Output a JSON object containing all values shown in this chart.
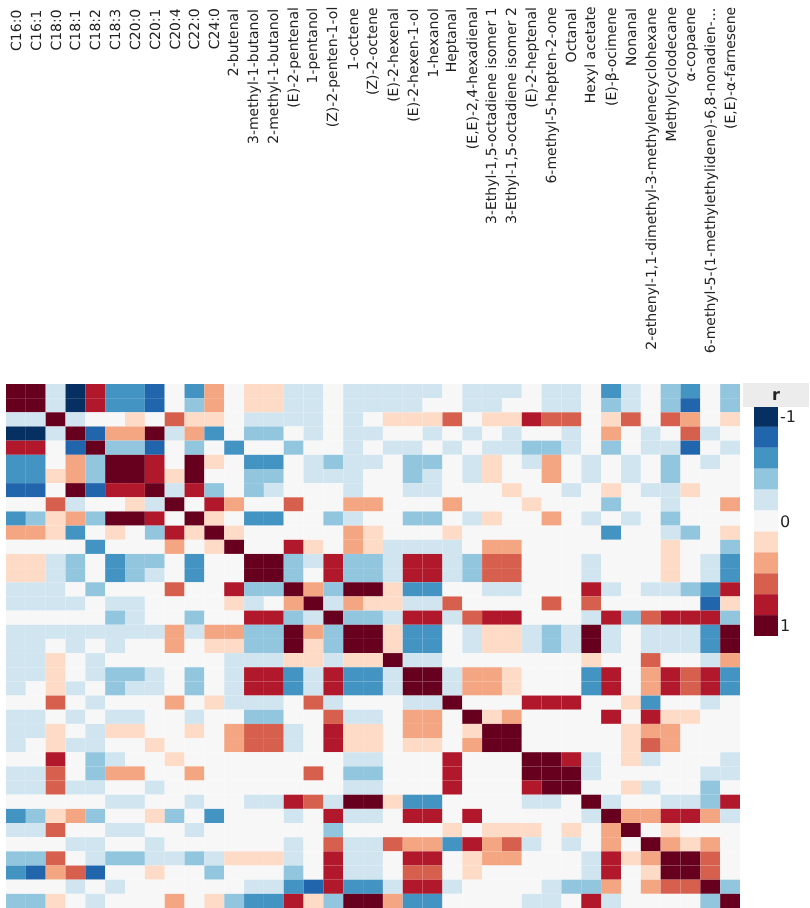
{
  "chart_data": {
    "type": "heatmap",
    "categories": [
      "C16:0",
      "C16:1",
      "C18:0",
      "C18:1",
      "C18:2",
      "C18:3",
      "C20:0",
      "C20:1",
      "C20:4",
      "C22:0",
      "C24:0",
      "2-butenal",
      "3-methyl-1-butanol",
      "2-methyl-1-butanol",
      "(E)-2-pentenal",
      "1-pentanol",
      "(Z)-2-penten-1-ol",
      "1-octene",
      "(Z)-2-octene",
      "(E)-2-hexenal",
      "(E)-2-hexen-1-ol",
      "1-hexanol",
      "Heptanal",
      "(E,E)-2,4-hexadienal",
      "3-Ethyl-1,5-octadiene isomer 1",
      "3-Ethyl-1,5-octadiene isomer 2",
      "(E)-2-heptenal",
      "6-methyl-5-hepten-2-one",
      "Octanal",
      "Hexyl acetate",
      "(E)-β-ocimene",
      "Nonanal",
      "2-ethenyl-1,1-dimethyl-3-methylenecyclohexane",
      "Methylcyclodecane",
      "α-copaene",
      "6-methyl-5-(1-methylethylidene)-6,8-nonadien-...",
      "(E,E)-α-farnesene"
    ],
    "y_categories": [
      null,
      null,
      null,
      null,
      null,
      null,
      null,
      null,
      null,
      null,
      null,
      null,
      null,
      null,
      null,
      null,
      null,
      null,
      null,
      null,
      null,
      null,
      null,
      null,
      null,
      null,
      null,
      null,
      null,
      null,
      null,
      null,
      null,
      null,
      null,
      null,
      null
    ],
    "cells": [
      [
        1,
        1,
        -0.2,
        -1,
        0.8,
        -0.6,
        -0.6,
        -0.8,
        0,
        -0.6,
        0.4,
        0,
        0.2,
        0.2,
        -0.2,
        -0.2,
        0,
        -0.2,
        -0.2,
        -0.2,
        -0.2,
        -0.2,
        0,
        -0.2,
        -0.2,
        -0.2,
        0,
        -0.2,
        -0.2,
        0,
        -0.6,
        -0.2,
        0,
        -0.4,
        -0.6,
        0,
        -0.4
      ],
      [
        1,
        1,
        -0.2,
        -1,
        0.8,
        -0.6,
        -0.6,
        -0.8,
        0,
        -0.4,
        0.4,
        0,
        0.2,
        0.2,
        -0.2,
        -0.2,
        0,
        -0.2,
        -0.2,
        -0.2,
        -0.2,
        0,
        0,
        -0.2,
        -0.2,
        0,
        0,
        -0.2,
        -0.2,
        0,
        -0.4,
        -0.2,
        0,
        -0.4,
        -0.8,
        0,
        -0.4
      ],
      [
        -0.2,
        -0.2,
        1,
        -0.2,
        0,
        0,
        0.2,
        0,
        0.6,
        0.2,
        0.2,
        0,
        -0.2,
        -0.2,
        -0.2,
        -0.2,
        0,
        -0.2,
        0,
        0.2,
        0.2,
        0.2,
        0.6,
        0,
        0.2,
        0.2,
        0.8,
        0.6,
        0.6,
        0,
        0.2,
        0.6,
        0,
        0.6,
        0.4,
        0,
        0.2
      ],
      [
        -1,
        -1,
        -0.2,
        1,
        -0.8,
        0.4,
        0.4,
        1,
        -0.2,
        0.4,
        -0.6,
        0,
        -0.4,
        -0.4,
        0,
        -0.2,
        0,
        -0.2,
        -0.2,
        0,
        0,
        -0.2,
        0,
        -0.2,
        0,
        -0.2,
        0,
        0,
        -0.2,
        0,
        0.4,
        0,
        -0.2,
        0,
        0.6,
        -0.2,
        0
      ],
      [
        0.8,
        0.8,
        0,
        -0.8,
        1,
        -0.4,
        -0.4,
        -0.8,
        0,
        -0.4,
        0,
        -0.6,
        0,
        0,
        -0.4,
        0,
        0,
        -0.2,
        0,
        -0.2,
        -0.2,
        0,
        -0.2,
        0,
        -0.2,
        -0.2,
        -0.4,
        -0.4,
        -0.2,
        0,
        -0.4,
        0,
        -0.2,
        -0.2,
        -0.8,
        0,
        -0.2
      ],
      [
        -0.6,
        -0.6,
        0,
        0.4,
        -0.4,
        1,
        1,
        0.8,
        0,
        1,
        0.2,
        0,
        -0.6,
        -0.6,
        0,
        -0.2,
        -0.4,
        -0.2,
        -0.2,
        0,
        -0.4,
        -0.4,
        0,
        -0.2,
        0.2,
        0,
        -0.2,
        0.4,
        0,
        -0.2,
        0,
        -0.2,
        0,
        -0.4,
        0,
        -0.2,
        0
      ],
      [
        -0.6,
        -0.6,
        0.2,
        0.4,
        -0.4,
        1,
        1,
        0.8,
        0.2,
        1,
        0,
        0,
        -0.4,
        -0.4,
        0,
        -0.2,
        -0.2,
        -0.2,
        0,
        0,
        -0.4,
        -0.2,
        0,
        -0.2,
        0.2,
        0,
        0,
        0.4,
        0,
        -0.2,
        0,
        -0.2,
        0,
        -0.4,
        0,
        0,
        0
      ],
      [
        -0.8,
        -0.8,
        0,
        1,
        -0.8,
        0.8,
        0.8,
        1,
        -0.2,
        0.8,
        -0.4,
        0,
        -0.4,
        -0.2,
        0,
        0,
        0,
        -0.2,
        0,
        0,
        -0.2,
        -0.2,
        0,
        0,
        0,
        0.2,
        0,
        0,
        -0.2,
        0,
        0.2,
        0,
        -0.2,
        -0.2,
        0.2,
        0,
        0
      ],
      [
        0,
        0,
        0.6,
        -0.2,
        0,
        0,
        0.2,
        -0.2,
        1,
        0,
        0.8,
        0.4,
        0,
        0,
        0.6,
        0,
        0,
        0.4,
        0.4,
        0,
        0,
        0,
        0.4,
        0,
        0,
        0,
        0.2,
        0,
        0,
        0,
        -0.4,
        0,
        0,
        -0.2,
        0,
        0,
        0.4
      ],
      [
        -0.6,
        -0.4,
        0.2,
        0.4,
        -0.4,
        1,
        1,
        0.8,
        0,
        1,
        0.2,
        0,
        -0.6,
        -0.6,
        0,
        0,
        -0.4,
        -0.2,
        0,
        0,
        -0.4,
        -0.4,
        0,
        -0.2,
        0.2,
        0,
        0,
        0.4,
        0,
        -0.2,
        0,
        -0.2,
        0,
        -0.4,
        0,
        0,
        0
      ],
      [
        0.4,
        0.4,
        0.2,
        -0.6,
        0,
        0.2,
        0,
        -0.4,
        0.8,
        0.2,
        1,
        0.2,
        0,
        0,
        0,
        0,
        0,
        0.4,
        0.2,
        0,
        0,
        0,
        0.2,
        0,
        0,
        0,
        0,
        0,
        0,
        0,
        -0.6,
        0,
        0,
        -0.2,
        -0.4,
        0,
        0.2
      ],
      [
        0,
        0,
        0,
        0,
        -0.6,
        0,
        0,
        0,
        0.4,
        0,
        0.2,
        1,
        0,
        0,
        0.8,
        0.2,
        0,
        0.4,
        0.2,
        -0.2,
        -0.2,
        -0.2,
        -0.2,
        0,
        0.4,
        0.4,
        0,
        0,
        0,
        0,
        0,
        0,
        0,
        0.2,
        0,
        0,
        -0.4
      ],
      [
        0.2,
        0.2,
        -0.2,
        -0.4,
        0,
        -0.6,
        -0.4,
        -0.4,
        0,
        -0.6,
        0,
        0,
        1,
        1,
        -0.4,
        -0.2,
        0.8,
        -0.4,
        -0.4,
        -0.2,
        0.8,
        0.8,
        -0.2,
        -0.4,
        0.6,
        0.6,
        0,
        0,
        0,
        -0.2,
        0,
        0,
        0,
        0.2,
        0,
        -0.2,
        -0.6
      ],
      [
        0.2,
        0.2,
        -0.2,
        -0.4,
        0,
        -0.6,
        -0.4,
        -0.2,
        0,
        -0.6,
        0,
        0,
        1,
        1,
        -0.4,
        0,
        0.8,
        -0.4,
        -0.4,
        -0.2,
        0.8,
        0.8,
        -0.2,
        -0.4,
        0.6,
        0.6,
        0,
        0,
        0,
        -0.2,
        0,
        0,
        0,
        0.2,
        0,
        -0.2,
        -0.6
      ],
      [
        -0.2,
        -0.2,
        -0.2,
        0,
        -0.4,
        0,
        0,
        0,
        0.6,
        0,
        0,
        0.8,
        -0.4,
        -0.4,
        1,
        0.4,
        -0.4,
        1,
        1,
        0.2,
        -0.6,
        -0.6,
        0,
        0,
        -0.2,
        -0.2,
        0,
        0,
        0,
        0.8,
        -0.2,
        0,
        -0.2,
        -0.2,
        -0.4,
        -0.6,
        0.8
      ],
      [
        -0.2,
        -0.2,
        -0.2,
        -0.2,
        0,
        -0.2,
        -0.2,
        0,
        0,
        0,
        0,
        0.2,
        -0.2,
        0,
        0.4,
        1,
        -0.2,
        0.4,
        0.2,
        0.2,
        -0.2,
        -0.2,
        0.6,
        0,
        0,
        0,
        0,
        0.6,
        0,
        0.6,
        0,
        0,
        0,
        0,
        0,
        -0.8,
        0.2
      ],
      [
        0,
        0,
        0,
        0,
        0,
        -0.4,
        -0.2,
        0,
        0,
        -0.4,
        0,
        0,
        0.8,
        0.8,
        -0.4,
        -0.2,
        1,
        -0.4,
        -0.4,
        -0.2,
        0.8,
        0.8,
        -0.2,
        0.6,
        0.8,
        0.8,
        0,
        0,
        0,
        -0.2,
        0.8,
        -0.4,
        0.6,
        0.8,
        0.8,
        0.8,
        -0.4
      ],
      [
        -0.2,
        -0.2,
        -0.2,
        -0.2,
        -0.2,
        -0.2,
        -0.2,
        -0.2,
        0.4,
        -0.2,
        0.4,
        0.4,
        -0.4,
        -0.4,
        1,
        0.4,
        -0.4,
        1,
        1,
        0.2,
        -0.6,
        -0.6,
        0,
        -0.2,
        0.2,
        0.2,
        -0.2,
        -0.4,
        -0.2,
        1,
        -0.2,
        0,
        -0.2,
        -0.2,
        -0.2,
        -0.6,
        1
      ],
      [
        -0.2,
        -0.2,
        0,
        -0.2,
        0,
        -0.2,
        0,
        0,
        0.4,
        0,
        0.2,
        0.2,
        -0.4,
        -0.4,
        1,
        0.2,
        -0.4,
        1,
        1,
        0.2,
        -0.6,
        -0.6,
        0,
        -0.2,
        0.2,
        0.2,
        -0.2,
        -0.4,
        -0.2,
        1,
        -0.2,
        0,
        -0.2,
        -0.2,
        -0.2,
        -0.6,
        1
      ],
      [
        -0.2,
        -0.2,
        0.2,
        0,
        -0.2,
        0,
        0,
        0,
        0,
        0,
        0,
        -0.2,
        -0.2,
        -0.2,
        0.2,
        0.2,
        -0.2,
        0.2,
        0.2,
        1,
        -0.2,
        -0.2,
        0,
        0,
        0,
        0,
        0,
        0,
        0,
        0.2,
        0,
        0,
        0.6,
        0,
        0,
        -0.2,
        0.4
      ],
      [
        -0.2,
        -0.2,
        0.2,
        0,
        -0.2,
        -0.4,
        -0.4,
        -0.2,
        0,
        -0.4,
        0,
        -0.2,
        0.8,
        0.8,
        -0.6,
        -0.2,
        0.8,
        -0.6,
        -0.6,
        -0.2,
        1,
        1,
        -0.2,
        0.4,
        0.4,
        0.2,
        0,
        0,
        0,
        -0.6,
        0.8,
        0,
        0.4,
        0.8,
        0.6,
        0.8,
        -0.6
      ],
      [
        -0.2,
        0,
        0.2,
        -0.2,
        0,
        -0.4,
        -0.2,
        -0.2,
        0,
        -0.4,
        0,
        -0.2,
        0.8,
        0.8,
        -0.6,
        -0.2,
        0.8,
        -0.6,
        -0.6,
        -0.2,
        1,
        1,
        -0.2,
        0.4,
        0.4,
        0.2,
        0,
        0,
        0,
        -0.6,
        0.8,
        0,
        0.4,
        0.8,
        0.6,
        0.8,
        -0.6
      ],
      [
        0,
        0,
        0.6,
        0,
        -0.2,
        0,
        0,
        0,
        0.4,
        0,
        0.2,
        -0.2,
        -0.2,
        -0.2,
        0,
        0.6,
        -0.2,
        0,
        0,
        0,
        -0.2,
        -0.2,
        1,
        0,
        0,
        0,
        0.8,
        0.8,
        0.8,
        0,
        0,
        0.2,
        -0.6,
        0,
        0,
        -0.2,
        0
      ],
      [
        -0.2,
        -0.2,
        0,
        -0.2,
        0,
        -0.2,
        -0.2,
        0,
        0,
        -0.2,
        0,
        0,
        -0.4,
        -0.4,
        0,
        0,
        0.6,
        -0.2,
        -0.2,
        0,
        0.4,
        0.4,
        0,
        1,
        0.2,
        0.4,
        0,
        0,
        0,
        0,
        0.8,
        0,
        0.8,
        0.2,
        0.2,
        0,
        0
      ],
      [
        -0.2,
        -0.2,
        0.2,
        0,
        -0.2,
        0.2,
        0.2,
        0,
        0,
        0.2,
        0,
        0.4,
        0.6,
        0.6,
        -0.2,
        0,
        0.8,
        0.2,
        0.2,
        0,
        0.4,
        0.4,
        0,
        0.2,
        1,
        1,
        0,
        0,
        0,
        0,
        0,
        0.2,
        0.4,
        0.4,
        0,
        0,
        0
      ],
      [
        -0.2,
        0,
        0.2,
        -0.2,
        -0.2,
        0,
        0,
        0.2,
        0,
        0,
        0,
        0.4,
        0.6,
        0.6,
        -0.2,
        0,
        0.8,
        0.2,
        0.2,
        0,
        0.2,
        0.2,
        0,
        0.4,
        1,
        1,
        0,
        0,
        0,
        0,
        0,
        0.2,
        0.6,
        0.4,
        0,
        0,
        0
      ],
      [
        0,
        0,
        0.8,
        0,
        -0.4,
        -0.2,
        0,
        0,
        0.2,
        0,
        0,
        0,
        0,
        0,
        0,
        0,
        0,
        -0.2,
        -0.2,
        0,
        0,
        0,
        0.8,
        0,
        0,
        0,
        1,
        1,
        0.8,
        -0.2,
        0,
        0.2,
        -0.2,
        0,
        0,
        0,
        -0.2
      ],
      [
        -0.2,
        -0.2,
        0.6,
        0,
        -0.4,
        0.4,
        0.4,
        0,
        0,
        0.4,
        0,
        0,
        0,
        0,
        0,
        0.6,
        0,
        -0.4,
        -0.4,
        0,
        0,
        0,
        0.8,
        0,
        0,
        0,
        1,
        1,
        1,
        -0.2,
        0,
        0,
        0,
        0,
        0,
        -0.2,
        -0.2
      ],
      [
        -0.2,
        -0.2,
        0.6,
        -0.2,
        -0.2,
        0,
        0,
        -0.2,
        0,
        0,
        0,
        0,
        0,
        0,
        0,
        0,
        0,
        -0.2,
        -0.2,
        0,
        0,
        0,
        0.8,
        0,
        0,
        0,
        0.8,
        1,
        1,
        0,
        0,
        0.2,
        -0.2,
        0,
        0,
        -0.4,
        0
      ],
      [
        0,
        0,
        0,
        0,
        0,
        -0.2,
        -0.2,
        0,
        0,
        -0.2,
        0,
        0,
        -0.2,
        -0.2,
        0.8,
        0.6,
        -0.2,
        1,
        1,
        0.2,
        -0.6,
        -0.6,
        0,
        0,
        0,
        0,
        -0.2,
        -0.2,
        0,
        1,
        -0.2,
        0,
        0,
        -0.2,
        -0.2,
        -0.4,
        0.8
      ],
      [
        -0.6,
        -0.4,
        0.2,
        0.4,
        -0.4,
        0,
        0,
        0.2,
        -0.4,
        0,
        -0.6,
        0,
        0,
        0,
        -0.2,
        0,
        0.8,
        -0.2,
        -0.2,
        0,
        0.8,
        0.8,
        0,
        0.8,
        0,
        0,
        0,
        0,
        0,
        -0.2,
        1,
        0.4,
        0.4,
        0.8,
        0.8,
        0.4,
        -0.2
      ],
      [
        -0.2,
        -0.2,
        0.6,
        0,
        0,
        -0.2,
        -0.2,
        0,
        0,
        -0.2,
        0,
        0,
        0,
        0,
        0,
        0,
        -0.4,
        0,
        0,
        0,
        0,
        0,
        0.2,
        0,
        0.2,
        0.2,
        0.2,
        0,
        0.2,
        0,
        0.4,
        1,
        0,
        0.2,
        0,
        0,
        0
      ],
      [
        0,
        0,
        0,
        -0.2,
        -0.2,
        0,
        0,
        -0.2,
        0,
        0,
        0,
        0,
        0,
        0,
        -0.2,
        0,
        0.6,
        -0.2,
        -0.2,
        0.6,
        0.4,
        0.4,
        -0.6,
        0.8,
        0.4,
        0.6,
        -0.2,
        0,
        -0.2,
        0,
        0.4,
        0,
        1,
        0.4,
        0.2,
        0.4,
        0
      ],
      [
        -0.4,
        -0.4,
        0.6,
        0,
        -0.2,
        -0.4,
        -0.4,
        -0.2,
        -0.2,
        -0.4,
        -0.2,
        0.2,
        0.2,
        0.2,
        -0.2,
        0,
        0.8,
        -0.2,
        -0.2,
        0,
        0.8,
        0.8,
        0,
        0.2,
        0.4,
        0.4,
        0,
        0,
        0,
        -0.2,
        0.8,
        0.2,
        0.4,
        1,
        1,
        0.6,
        0
      ],
      [
        -0.6,
        -0.8,
        0.4,
        0.6,
        -0.8,
        0,
        0,
        0.2,
        0,
        0,
        -0.4,
        0,
        0,
        0,
        -0.4,
        0,
        0.8,
        -0.2,
        -0.2,
        0,
        0.6,
        0.6,
        0,
        0.2,
        0,
        0,
        0,
        0,
        0,
        -0.2,
        0.8,
        0,
        0.2,
        1,
        1,
        0.6,
        0
      ],
      [
        0,
        0,
        0,
        -0.2,
        0,
        -0.2,
        0,
        0,
        0,
        0,
        0,
        0,
        -0.2,
        -0.2,
        -0.6,
        -0.8,
        0.8,
        -0.6,
        -0.6,
        -0.2,
        0.8,
        0.8,
        -0.2,
        0,
        0,
        0,
        0,
        -0.2,
        -0.4,
        -0.4,
        0.4,
        0,
        0.4,
        0.6,
        0.6,
        1,
        -0.4
      ],
      [
        -0.4,
        -0.4,
        0.2,
        0,
        -0.2,
        0,
        0,
        0,
        0.4,
        0,
        0.2,
        -0.4,
        -0.6,
        -0.6,
        0.8,
        0.2,
        -0.4,
        1,
        1,
        0.4,
        -0.6,
        -0.6,
        0,
        0,
        0,
        0,
        -0.2,
        -0.2,
        0,
        0.8,
        -0.2,
        0,
        0,
        0,
        0,
        -0.4,
        1
      ]
    ],
    "clim": [
      1.1,
      -1.1
    ],
    "cticks": [
      -1,
      0,
      1
    ],
    "clabel": "r",
    "tick_labels": "x"
  }
}
